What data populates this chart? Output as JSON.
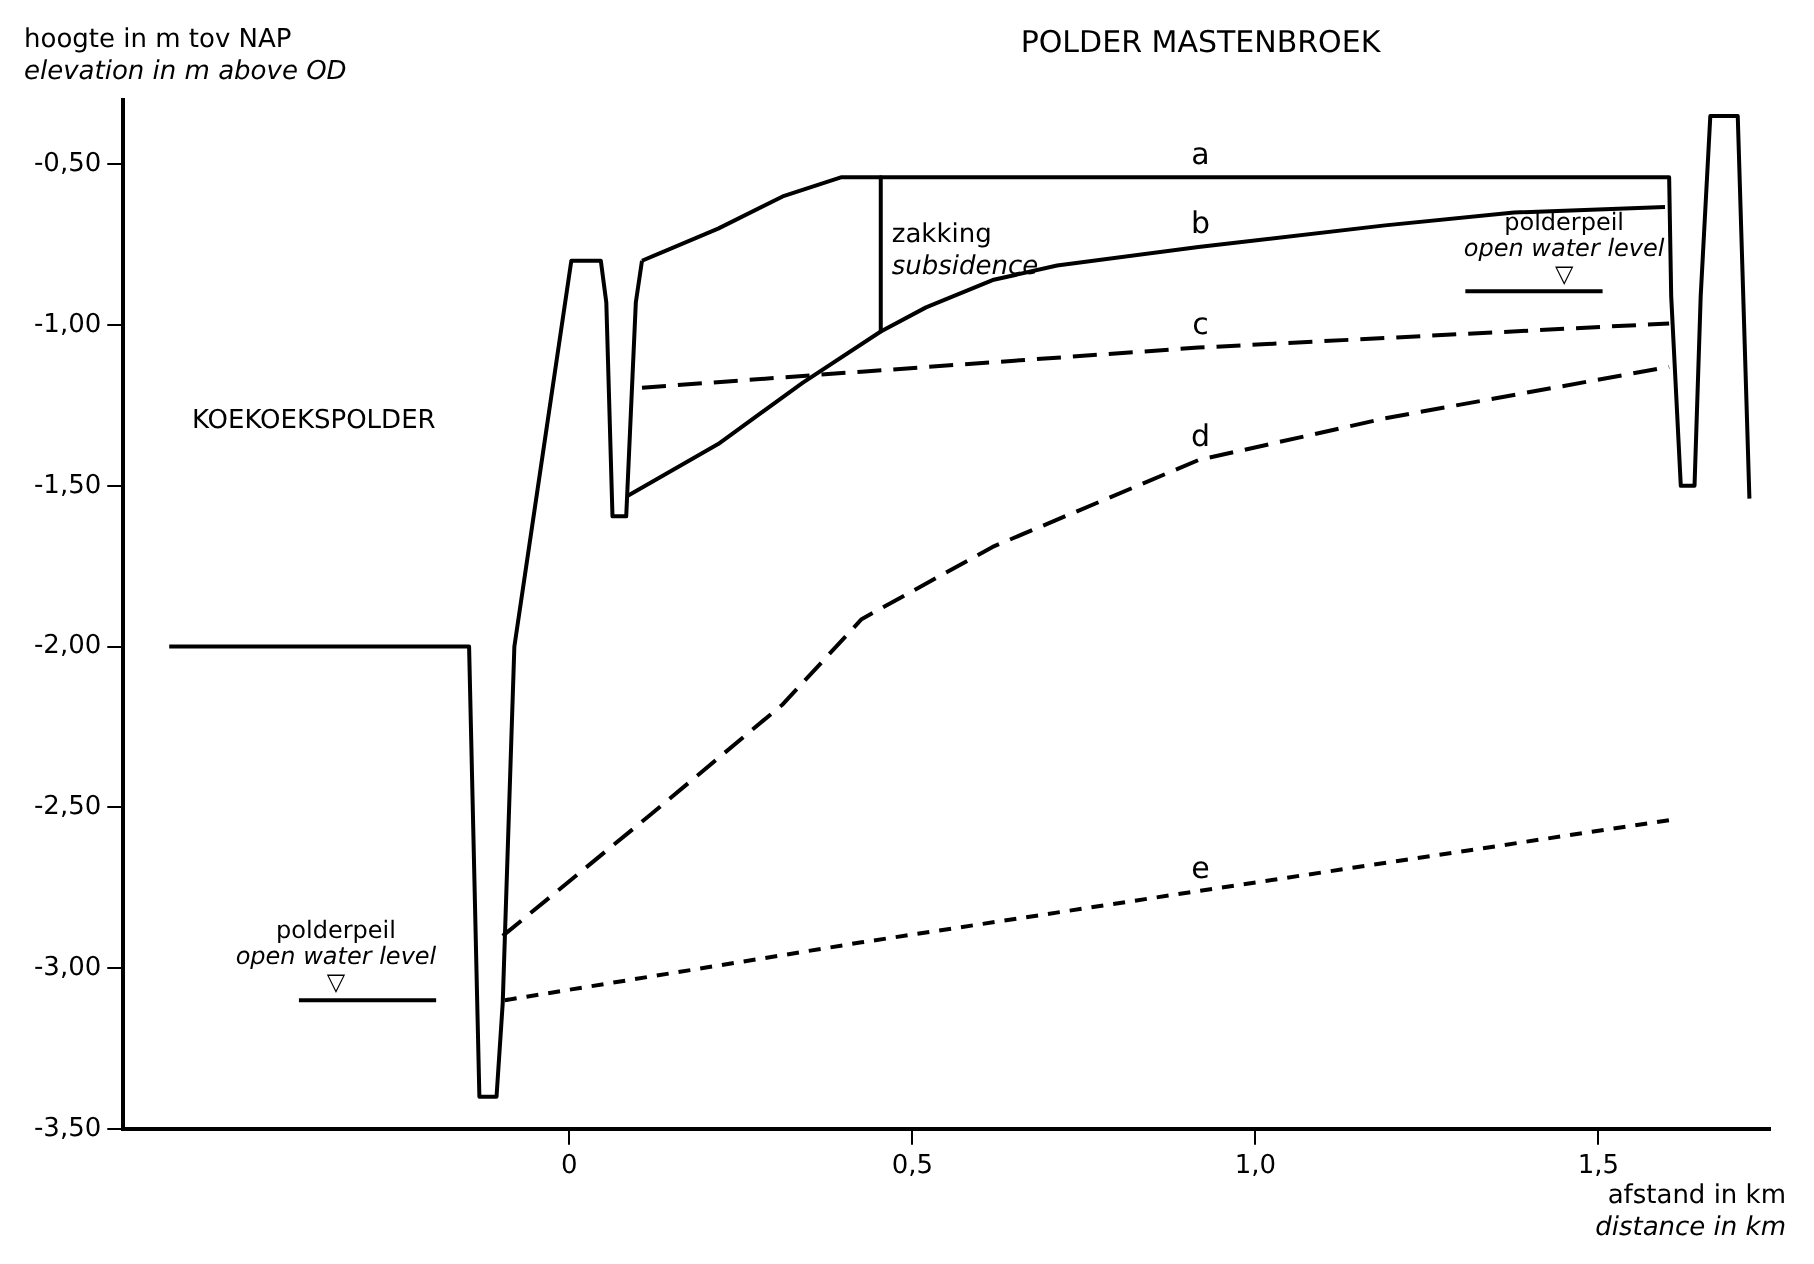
{
  "chart_data": {
    "type": "line",
    "title": "POLDER MASTENBROEK",
    "xlabel": "afstand in km\ndistance in km",
    "ylabel": "hoogte in m tov NAP\nelevation in m above OD",
    "xlim": [
      -0.65,
      1.75
    ],
    "ylim": [
      -3.5,
      -0.3
    ],
    "xticks": [
      0,
      {
        "value": 0.5,
        "label": "0,5"
      },
      {
        "value": 1,
        "label": "1,0"
      },
      {
        "value": 1.5,
        "label": "1,5"
      }
    ],
    "yticks": [
      {
        "value": -0.5,
        "label": "-0,50"
      },
      {
        "value": -1,
        "label": "-1,00"
      },
      {
        "value": -1.5,
        "label": "-1,50"
      },
      {
        "value": -2,
        "label": "-2,00"
      },
      {
        "value": -2.5,
        "label": "-2,50"
      },
      {
        "value": -3,
        "label": "-3,00"
      },
      {
        "value": -3.5,
        "label": "-3,50"
      }
    ],
    "grid": false,
    "legend": false,
    "marker": "none",
    "series": [
      {
        "color": "#000000",
        "line_style": "solid",
        "x": [
          -0.583,
          -0.146,
          -0.131,
          -0.106,
          -0.097,
          -0.08,
          0.003,
          0.046,
          0.054,
          0.063,
          0.083,
          0.097,
          0.106
        ],
        "values": [
          -2.0,
          -2.0,
          -3.4,
          -3.4,
          -3.11,
          -2.0,
          -0.8,
          -0.8,
          -0.93,
          -1.595,
          -1.595,
          -0.93,
          -0.8
        ]
      },
      {
        "name": "a",
        "color": "#000000",
        "line_style": "solid",
        "x": [
          0.106,
          0.217,
          0.311,
          0.397,
          1.603,
          1.606,
          1.62,
          1.64,
          1.649,
          1.663,
          1.703,
          1.72
        ],
        "values": [
          -0.8,
          -0.7,
          -0.6,
          -0.54,
          -0.54,
          -0.91,
          -1.5,
          -1.5,
          -0.91,
          -0.35,
          -0.35,
          -1.54
        ]
      },
      {
        "name": "b",
        "color": "#000000",
        "line_style": "solid",
        "x": [
          0.086,
          0.217,
          0.34,
          0.454,
          0.52,
          0.617,
          0.711,
          0.917,
          1.189,
          1.377,
          1.597
        ],
        "values": [
          -1.53,
          -1.37,
          -1.18,
          -1.02,
          -0.945,
          -0.86,
          -0.815,
          -0.757,
          -0.69,
          -0.65,
          -0.633
        ]
      },
      {
        "name": "c",
        "color": "#000000",
        "line_style": "dashed",
        "x": [
          0.106,
          0.426,
          0.917,
          1.603
        ],
        "values": [
          -1.195,
          -1.145,
          -1.07,
          -0.995
        ]
      },
      {
        "name": "d",
        "color": "#000000",
        "line_style": "dashed",
        "x": [
          -0.097,
          0.12,
          0.311,
          0.426,
          0.617,
          0.917,
          1.189,
          1.603
        ],
        "values": [
          -2.9,
          -2.52,
          -2.18,
          -1.915,
          -1.69,
          -1.42,
          -1.29,
          -1.13
        ]
      },
      {
        "name": "e",
        "color": "#000000",
        "line_style": "dotted",
        "x": [
          -0.094,
          0.426,
          0.903,
          1.603
        ],
        "values": [
          -3.1,
          -2.92,
          -2.765,
          -2.54
        ]
      },
      {
        "color": "#000000",
        "line_style": "solid",
        "x": [
          0.454,
          0.454
        ],
        "values": [
          -0.54,
          -1.02
        ]
      },
      {
        "color": "#000000",
        "line_style": "solid",
        "x": [
          -0.394,
          -0.194
        ],
        "values": [
          -3.1,
          -3.1
        ]
      },
      {
        "color": "#000000",
        "line_style": "solid",
        "x": [
          1.306,
          1.506
        ],
        "values": [
          -0.895,
          -0.895
        ]
      }
    ],
    "annotations": [
      "KOEKOEKSPOLDER",
      "zakking\nsubsidence",
      "polderpeil\nopen water level\n▽",
      "polderpeil\nopen water level\n▽"
    ]
  }
}
